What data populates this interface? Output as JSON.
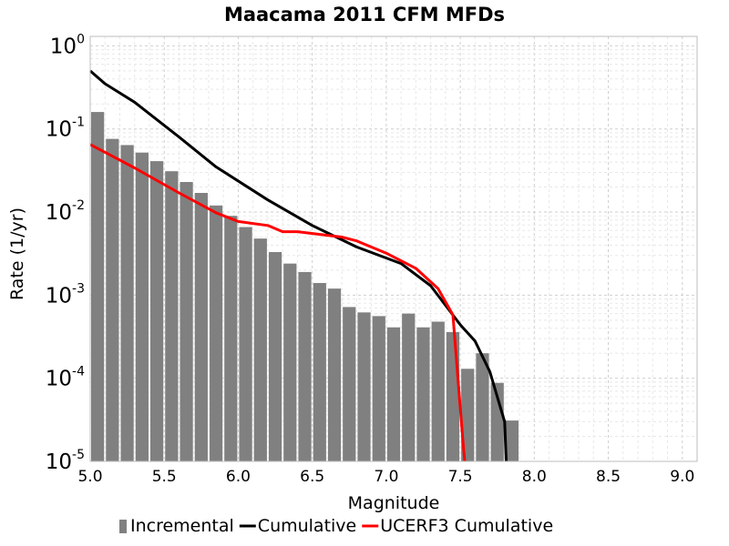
{
  "chart_data": {
    "type": "bar",
    "title": "Maacama 2011 CFM MFDs",
    "xlabel": "Magnitude",
    "ylabel": "Rate (1/yr)",
    "xlim": [
      5.0,
      9.1
    ],
    "ylim": [
      1e-05,
      1.3
    ],
    "y_scale": "log",
    "x_ticks": [
      "5.0",
      "5.5",
      "6.0",
      "6.5",
      "7.0",
      "7.5",
      "8.0",
      "8.5",
      "9.0"
    ],
    "y_ticks": [
      {
        "base": "10",
        "exp": "0",
        "value": 1
      },
      {
        "base": "10",
        "exp": "-1",
        "value": 0.1
      },
      {
        "base": "10",
        "exp": "-2",
        "value": 0.01
      },
      {
        "base": "10",
        "exp": "-3",
        "value": 0.001
      },
      {
        "base": "10",
        "exp": "-4",
        "value": 0.0001
      },
      {
        "base": "10",
        "exp": "-5",
        "value": 1e-05
      }
    ],
    "grid": true,
    "legend_position": "bottom",
    "series": [
      {
        "name": "Incremental",
        "type": "bar",
        "color": "#808080",
        "x": [
          5.05,
          5.15,
          5.25,
          5.35,
          5.45,
          5.55,
          5.65,
          5.75,
          5.85,
          5.95,
          6.05,
          6.15,
          6.25,
          6.35,
          6.45,
          6.55,
          6.65,
          6.75,
          6.85,
          6.95,
          7.05,
          7.15,
          7.25,
          7.35,
          7.45,
          7.55,
          7.65,
          7.75,
          7.85
        ],
        "values": [
          0.16,
          0.076,
          0.064,
          0.052,
          0.041,
          0.031,
          0.023,
          0.017,
          0.012,
          0.009,
          0.0066,
          0.0048,
          0.0033,
          0.0024,
          0.0019,
          0.0014,
          0.0012,
          0.00072,
          0.00062,
          0.00056,
          0.00041,
          0.0006,
          0.00041,
          0.00048,
          0.00036,
          0.00013,
          0.0002,
          8.8e-05,
          3.1e-05
        ]
      },
      {
        "name": "Cumulative",
        "type": "line",
        "color": "#000000",
        "x": [
          5.0,
          5.1,
          5.3,
          5.6,
          5.85,
          6.2,
          6.5,
          6.8,
          7.1,
          7.3,
          7.5,
          7.6,
          7.7,
          7.8,
          7.81
        ],
        "values": [
          0.5,
          0.35,
          0.21,
          0.08,
          0.035,
          0.014,
          0.0069,
          0.0038,
          0.0024,
          0.0013,
          0.00044,
          0.00028,
          0.00012,
          3e-05,
          1e-05
        ]
      },
      {
        "name": "UCERF3 Cumulative",
        "type": "line",
        "color": "#ff0000",
        "x": [
          5.0,
          5.3,
          5.6,
          5.85,
          6.0,
          6.2,
          6.3,
          6.4,
          6.7,
          6.8,
          7.0,
          7.2,
          7.35,
          7.45,
          7.52,
          7.53
        ],
        "values": [
          0.065,
          0.034,
          0.017,
          0.0098,
          0.0077,
          0.0069,
          0.0058,
          0.0058,
          0.005,
          0.0045,
          0.0032,
          0.0021,
          0.0012,
          0.00058,
          1.6e-05,
          1e-05
        ]
      }
    ]
  }
}
